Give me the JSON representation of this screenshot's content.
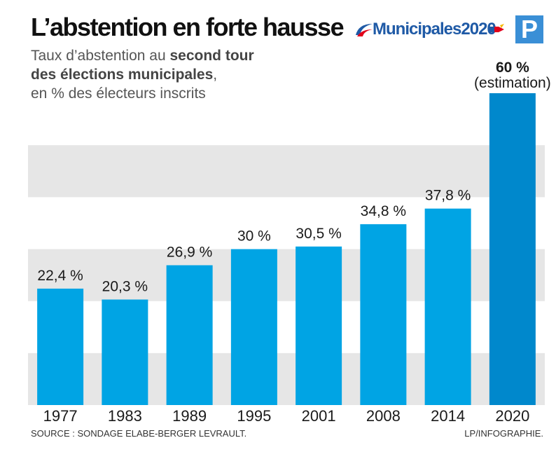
{
  "header": {
    "title": "L’abstention en forte hausse",
    "subtitle_line1_a": "Taux d’abstention au ",
    "subtitle_line1_b": "second tour",
    "subtitle_line2_a": "des élections municipales",
    "subtitle_line2_b": ",",
    "subtitle_line3": "en % des électeurs inscrits",
    "logo_text": "Municipales2020",
    "p_logo": "P"
  },
  "footer": {
    "source": "SOURCE : SONDAGE ELABE-BERGER LEVRAULT.",
    "credit": "LP/INFOGRAPHIE."
  },
  "colors": {
    "bar": "#00a4e4",
    "bar_highlight": "#0088cc",
    "band": "#e6e6e6",
    "text": "#1a1a1a"
  },
  "chart_data": {
    "type": "bar",
    "categories": [
      "1977",
      "1983",
      "1989",
      "1995",
      "2001",
      "2008",
      "2014",
      "2020"
    ],
    "values": [
      22.4,
      20.3,
      26.9,
      30,
      30.5,
      34.8,
      37.8,
      60
    ],
    "value_labels": [
      "22,4 %",
      "20,3 %",
      "26,9 %",
      "30 %",
      "30,5 %",
      "34,8 %",
      "37,8 %",
      "60 %"
    ],
    "annotations": [
      "",
      "",
      "",
      "",
      "",
      "",
      "",
      "(estimation)"
    ],
    "ylim": [
      0,
      60
    ],
    "grid": "alternating horizontal bands",
    "title": "L’abstention en forte hausse",
    "xlabel": "",
    "ylabel": ""
  }
}
